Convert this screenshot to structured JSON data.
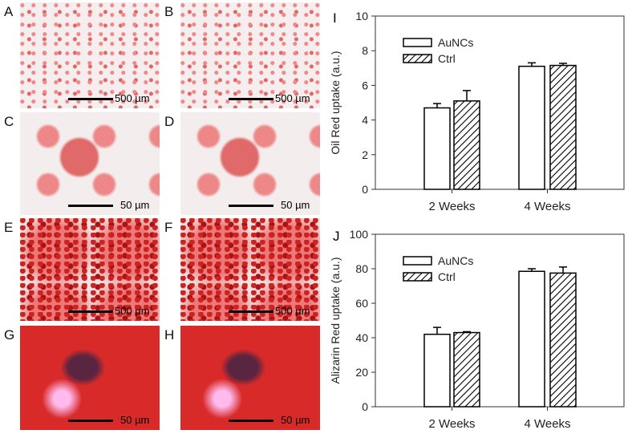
{
  "panels": [
    {
      "label": "A",
      "scale": "500 µm"
    },
    {
      "label": "B",
      "scale": "500 µm"
    },
    {
      "label": "C",
      "scale": "50 µm"
    },
    {
      "label": "D",
      "scale": "50 µm"
    },
    {
      "label": "E",
      "scale": "500 µm"
    },
    {
      "label": "F",
      "scale": "500 µm"
    },
    {
      "label": "G",
      "scale": "50 µm"
    },
    {
      "label": "H",
      "scale": "50 µm"
    }
  ],
  "chart_data": [
    {
      "panel": "I",
      "type": "bar",
      "categories": [
        "2 Weeks",
        "4 Weeks"
      ],
      "ylabel": "Oil Red uptake (a.u.)",
      "ylim": [
        0,
        10
      ],
      "yticks": [
        0,
        2,
        4,
        6,
        8,
        10
      ],
      "series": [
        {
          "name": "AuNCs",
          "values": [
            4.7,
            7.1
          ],
          "errors": [
            0.25,
            0.2
          ]
        },
        {
          "name": "Ctrl",
          "values": [
            5.1,
            7.15
          ],
          "errors": [
            0.6,
            0.12
          ]
        }
      ],
      "legend": "top-left"
    },
    {
      "panel": "J",
      "type": "bar",
      "categories": [
        "2 Weeks",
        "4 Weeks"
      ],
      "ylabel": "Alizarin Red uptake (a.u.)",
      "ylim": [
        0,
        100
      ],
      "yticks": [
        0,
        20,
        40,
        60,
        80,
        100
      ],
      "series": [
        {
          "name": "AuNCs",
          "values": [
            42,
            78.5
          ],
          "errors": [
            4,
            1.5
          ]
        },
        {
          "name": "Ctrl",
          "values": [
            43,
            77.5
          ],
          "errors": [
            0.5,
            3.5
          ]
        }
      ],
      "legend": "top-left"
    }
  ]
}
